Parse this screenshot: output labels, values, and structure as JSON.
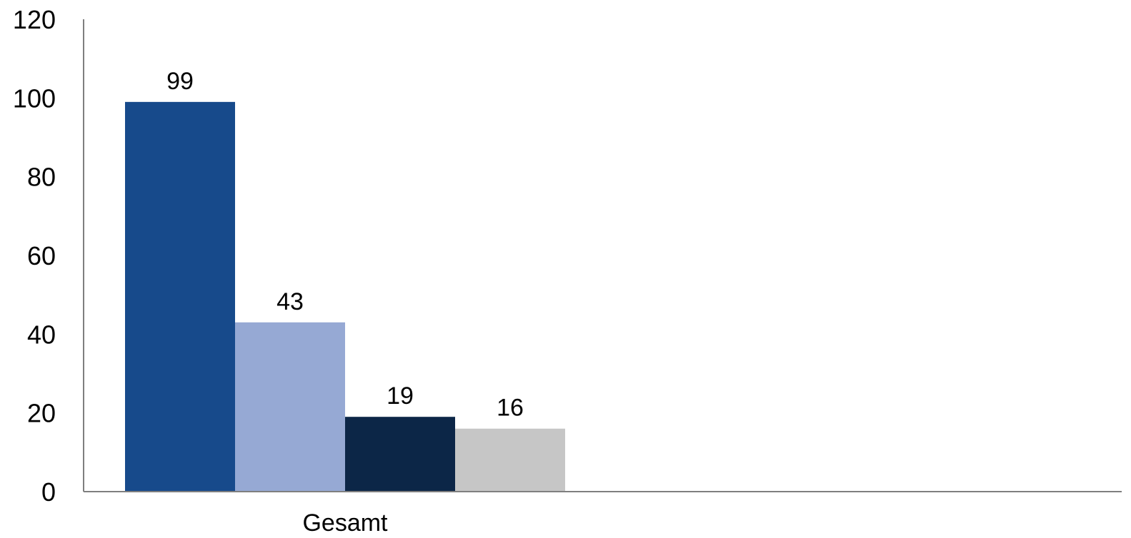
{
  "chart_data": {
    "type": "bar",
    "title": "",
    "xlabel": "",
    "ylabel": "",
    "categories": [
      "Gesamt"
    ],
    "series": [
      {
        "values": [
          99
        ],
        "color": "#174a8b"
      },
      {
        "values": [
          43
        ],
        "color": "#96a9d4"
      },
      {
        "values": [
          19
        ],
        "color": "#0c2647"
      },
      {
        "values": [
          16
        ],
        "color": "#c6c6c6"
      }
    ],
    "ylim": [
      0,
      120
    ],
    "yticks": [
      0,
      20,
      40,
      60,
      80,
      100,
      120
    ],
    "data_labels": [
      "99",
      "43",
      "19",
      "16"
    ],
    "grid": false,
    "legend": "none"
  }
}
